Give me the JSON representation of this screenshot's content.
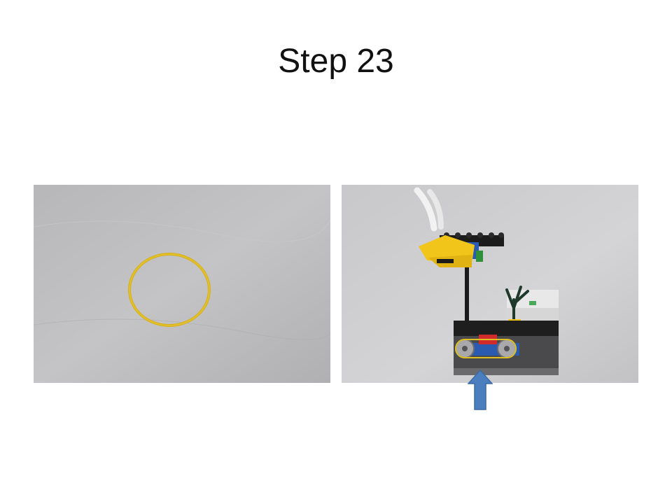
{
  "slide": {
    "title": "Step 23"
  },
  "images": {
    "left": {
      "icon": "rubber-band-photo"
    },
    "right": {
      "icon": "lego-model-photo"
    }
  },
  "arrow": {
    "icon": "up-arrow-icon",
    "color": "#4a7ebf"
  }
}
